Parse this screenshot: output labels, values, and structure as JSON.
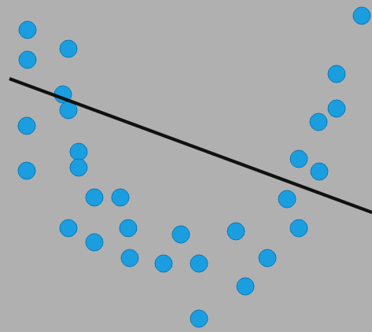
{
  "chart_data": {
    "type": "scatter",
    "xlim": [
      0,
      473
    ],
    "ylim": [
      0,
      422
    ],
    "grid": false,
    "tick_labels": false,
    "series": [
      {
        "type": "scatter",
        "color": "#1a9ee0",
        "marker": "circle",
        "x": [
          35,
          460,
          35,
          87,
          428,
          80,
          87,
          428,
          405,
          34,
          100,
          100,
          380,
          406,
          34,
          120,
          153,
          365,
          87,
          163,
          380,
          120,
          230,
          300,
          165,
          208,
          253,
          340,
          312,
          253
        ],
        "values": [
          384,
          402,
          346,
          360,
          328,
          302,
          282,
          284,
          267,
          262,
          229,
          209,
          220,
          204,
          205,
          171,
          171,
          169,
          132,
          132,
          132,
          114,
          124,
          128,
          94,
          87,
          87,
          94,
          58,
          17
        ]
      },
      {
        "type": "line",
        "color": "#111111",
        "line_style": "solid",
        "x": [
          12,
          473
        ],
        "values": [
          322,
          152
        ]
      }
    ]
  }
}
